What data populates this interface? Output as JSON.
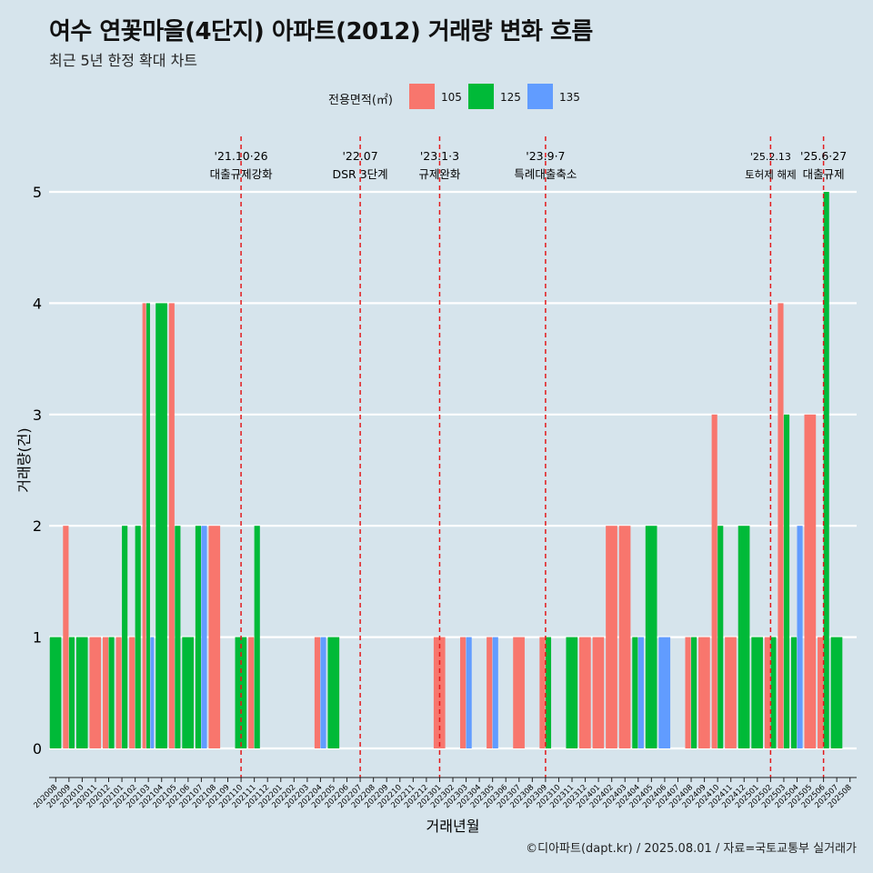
{
  "title": "여수 연꽃마을(4단지) 아파트(2012) 거래량 변화 흐름",
  "subtitle": "최근 5년 한정 확대 차트",
  "caption": "©디아파트(dapt.kr) / 2025.08.01 / 자료=국토교통부 실거래가",
  "legend": {
    "title": "전용면적(㎡)",
    "items": [
      {
        "label": "105",
        "color": "#f8766d"
      },
      {
        "label": "125",
        "color": "#00ba38"
      },
      {
        "label": "135",
        "color": "#619cff"
      }
    ]
  },
  "chart_data": {
    "type": "bar",
    "xlabel": "거래년월",
    "ylabel": "거래량(건)",
    "ylim": [
      0,
      5
    ],
    "yticks": [
      0,
      1,
      2,
      3,
      4,
      5
    ],
    "grid": true,
    "legend_position": "top",
    "categories": [
      "202008",
      "202009",
      "202010",
      "202011",
      "202012",
      "202101",
      "202102",
      "202103",
      "202104",
      "202105",
      "202106",
      "202107",
      "202108",
      "202109",
      "202110",
      "202111",
      "202112",
      "202201",
      "202202",
      "202203",
      "202204",
      "202205",
      "202206",
      "202207",
      "202208",
      "202209",
      "202210",
      "202211",
      "202212",
      "202301",
      "202302",
      "202303",
      "202304",
      "202305",
      "202306",
      "202307",
      "202308",
      "202309",
      "202310",
      "202311",
      "202312",
      "202401",
      "202402",
      "202403",
      "202404",
      "202405",
      "202406",
      "202407",
      "202408",
      "202409",
      "202410",
      "202411",
      "202412",
      "202501",
      "202502",
      "202503",
      "202504",
      "202505",
      "202506",
      "202507",
      "202508"
    ],
    "series": [
      {
        "name": "105",
        "color": "#f8766d",
        "values": [
          0,
          2,
          0,
          1,
          1,
          1,
          1,
          4,
          0,
          4,
          0,
          0,
          2,
          0,
          0,
          1,
          0,
          0,
          0,
          0,
          1,
          0,
          0,
          0,
          0,
          0,
          0,
          0,
          0,
          1,
          0,
          1,
          0,
          1,
          0,
          1,
          0,
          1,
          0,
          0,
          1,
          1,
          2,
          2,
          0,
          0,
          0,
          0,
          1,
          1,
          3,
          1,
          0,
          0,
          1,
          4,
          0,
          3,
          1,
          0,
          0
        ]
      },
      {
        "name": "125",
        "color": "#00ba38",
        "values": [
          1,
          1,
          1,
          0,
          1,
          2,
          2,
          4,
          4,
          2,
          1,
          2,
          0,
          0,
          1,
          2,
          0,
          0,
          0,
          0,
          0,
          1,
          0,
          0,
          0,
          0,
          0,
          0,
          0,
          0,
          0,
          0,
          0,
          0,
          0,
          0,
          0,
          1,
          0,
          1,
          0,
          0,
          0,
          0,
          1,
          2,
          0,
          0,
          1,
          0,
          2,
          0,
          2,
          1,
          1,
          3,
          1,
          0,
          5,
          1,
          0
        ]
      },
      {
        "name": "135",
        "color": "#619cff",
        "values": [
          0,
          0,
          0,
          0,
          0,
          0,
          0,
          1,
          0,
          0,
          0,
          2,
          0,
          0,
          0,
          0,
          0,
          0,
          0,
          0,
          1,
          0,
          0,
          0,
          0,
          0,
          0,
          0,
          0,
          0,
          0,
          1,
          0,
          1,
          0,
          0,
          0,
          0,
          0,
          0,
          0,
          0,
          0,
          0,
          1,
          0,
          1,
          0,
          0,
          0,
          0,
          0,
          0,
          0,
          0,
          0,
          2,
          0,
          0,
          0,
          0
        ]
      }
    ],
    "annotations": [
      {
        "month": "202110",
        "date": "'21.10·26",
        "label": "대출규제강화"
      },
      {
        "month": "202207",
        "date": "'22.07",
        "label": "DSR 3단계"
      },
      {
        "month": "202301",
        "date": "'23.1·3",
        "label": "규제완화"
      },
      {
        "month": "202309",
        "date": "'23.9·7",
        "label": "특례대출축소"
      },
      {
        "month": "202502",
        "date": "'25.2.13",
        "label": "토허제 해제"
      },
      {
        "month": "202506",
        "date": "'25.6·27",
        "label": "대출규제"
      }
    ]
  }
}
